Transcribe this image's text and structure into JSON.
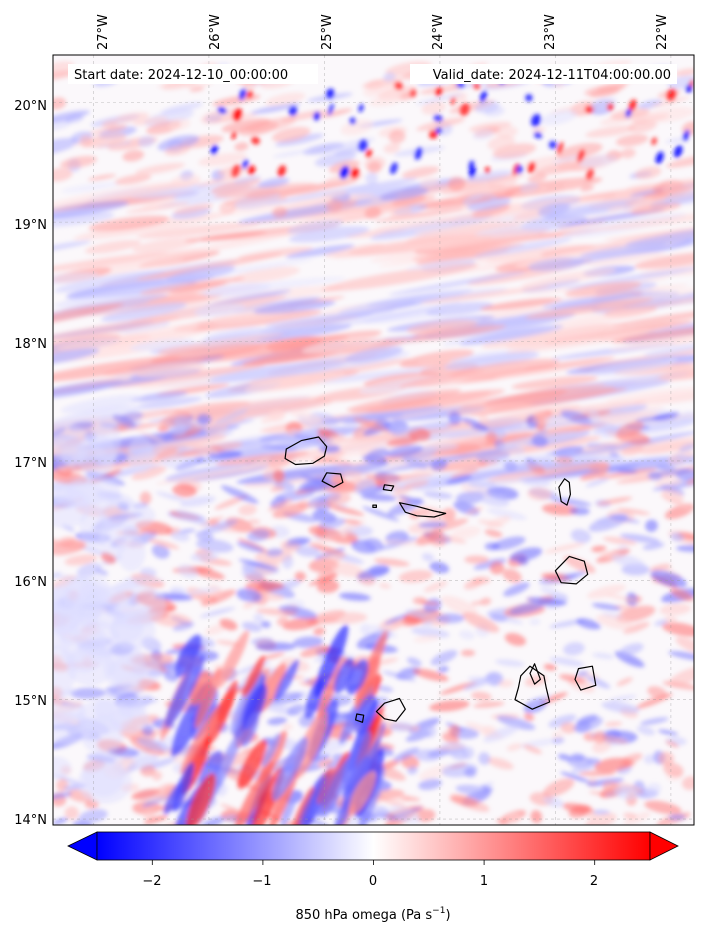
{
  "map": {
    "start_label": "Start date: 2024-12-10_00:00:00",
    "valid_label": "Valid_date: 2024-12-11T04:00:00.00",
    "lon_ticks": [
      "27°W",
      "26°W",
      "25°W",
      "24°W",
      "23°W",
      "22°W"
    ],
    "lat_ticks": [
      "20°N",
      "19°N",
      "18°N",
      "17°N",
      "16°N",
      "15°N",
      "14°N"
    ],
    "lon_range": [
      -27.35,
      -21.8
    ],
    "lat_range": [
      13.95,
      20.4
    ],
    "gridlines": true,
    "colormap": "bwr",
    "colors": {
      "negative": "#0000ff",
      "zero": "#ffffff",
      "positive": "#ff0000"
    },
    "coastline_color": "#000000"
  },
  "colorbar": {
    "ticks": [
      "−2",
      "−1",
      "0",
      "1",
      "2"
    ],
    "tick_values": [
      -2,
      -1,
      0,
      1,
      2
    ],
    "range": [
      -2.5,
      2.5
    ],
    "label_text": "850 hPa omega (Pa s",
    "label_exp": "−1",
    "label_close": ")"
  }
}
